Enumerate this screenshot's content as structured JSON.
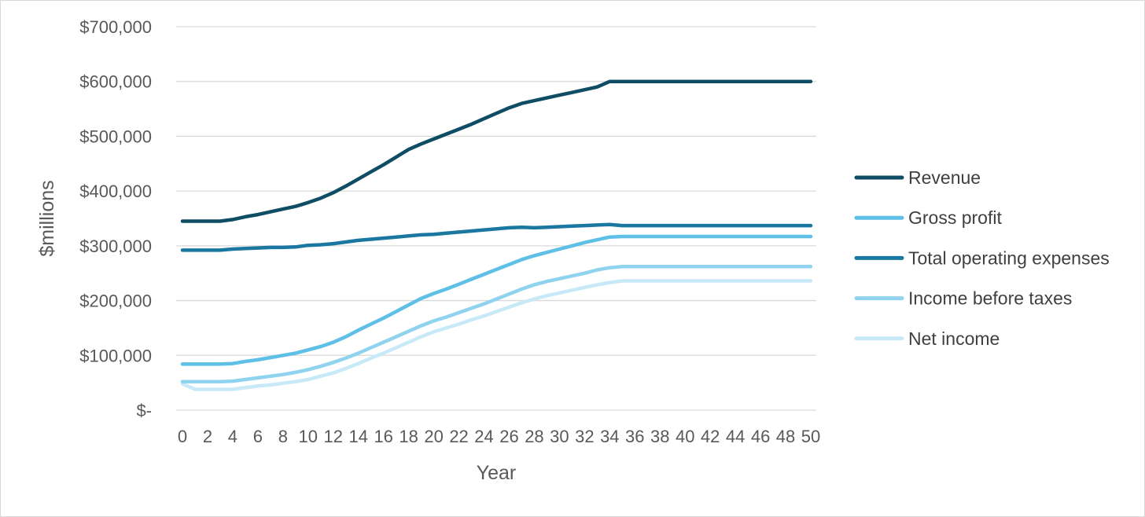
{
  "chart_data": {
    "type": "line",
    "title": "",
    "xlabel": "Year",
    "ylabel": "$millions",
    "ylim": [
      0,
      700000
    ],
    "xlim": [
      0,
      50
    ],
    "grid": true,
    "legend_position": "right",
    "y_ticks": [
      {
        "value": 0,
        "label": "$-"
      },
      {
        "value": 100000,
        "label": "$100,000"
      },
      {
        "value": 200000,
        "label": "$200,000"
      },
      {
        "value": 300000,
        "label": "$300,000"
      },
      {
        "value": 400000,
        "label": "$400,000"
      },
      {
        "value": 500000,
        "label": "$500,000"
      },
      {
        "value": 600000,
        "label": "$600,000"
      },
      {
        "value": 700000,
        "label": "$700,000"
      }
    ],
    "x_ticks": [
      0,
      2,
      4,
      6,
      8,
      10,
      12,
      14,
      16,
      18,
      20,
      22,
      24,
      26,
      28,
      30,
      32,
      34,
      36,
      38,
      40,
      42,
      44,
      46,
      48,
      50
    ],
    "series": [
      {
        "name": "Revenue",
        "color": "#0e4d64",
        "x": [
          0,
          1,
          2,
          3,
          4,
          5,
          6,
          7,
          8,
          9,
          10,
          11,
          12,
          13,
          14,
          15,
          16,
          17,
          18,
          19,
          20,
          21,
          22,
          23,
          24,
          25,
          26,
          27,
          28,
          29,
          30,
          31,
          32,
          33,
          34,
          35,
          36,
          37,
          38,
          39,
          40,
          41,
          42,
          43,
          44,
          45,
          46,
          47,
          48,
          49,
          50
        ],
        "values": [
          345000,
          345000,
          345000,
          345000,
          348000,
          353000,
          357000,
          362000,
          367000,
          372000,
          379000,
          387000,
          397000,
          409000,
          422000,
          435000,
          448000,
          462000,
          476000,
          486000,
          495000,
          504000,
          513000,
          522000,
          532000,
          542000,
          552000,
          560000,
          565000,
          570000,
          575000,
          580000,
          585000,
          590000,
          600000,
          600000,
          600000,
          600000,
          600000,
          600000,
          600000,
          600000,
          600000,
          600000,
          600000,
          600000,
          600000,
          600000,
          600000,
          600000,
          600000
        ]
      },
      {
        "name": "Gross profit",
        "color": "#5ec0e6",
        "x": [
          0,
          1,
          2,
          3,
          4,
          5,
          6,
          7,
          8,
          9,
          10,
          11,
          12,
          13,
          14,
          15,
          16,
          17,
          18,
          19,
          20,
          21,
          22,
          23,
          24,
          25,
          26,
          27,
          28,
          29,
          30,
          31,
          32,
          33,
          34,
          35,
          36,
          37,
          38,
          39,
          40,
          41,
          42,
          43,
          44,
          45,
          46,
          47,
          48,
          49,
          50
        ],
        "values": [
          84000,
          84000,
          84000,
          84000,
          85000,
          89000,
          92000,
          96000,
          100000,
          104000,
          110000,
          116000,
          124000,
          134000,
          146000,
          157000,
          168000,
          180000,
          192000,
          204000,
          213000,
          221000,
          230000,
          239000,
          248000,
          257000,
          266000,
          275000,
          282000,
          288000,
          294000,
          300000,
          306000,
          311000,
          316000,
          317000,
          317000,
          317000,
          317000,
          317000,
          317000,
          317000,
          317000,
          317000,
          317000,
          317000,
          317000,
          317000,
          317000,
          317000,
          317000
        ]
      },
      {
        "name": "Total operating expenses",
        "color": "#1a78a0",
        "x": [
          0,
          1,
          2,
          3,
          4,
          5,
          6,
          7,
          8,
          9,
          10,
          11,
          12,
          13,
          14,
          15,
          16,
          17,
          18,
          19,
          20,
          21,
          22,
          23,
          24,
          25,
          26,
          27,
          28,
          29,
          30,
          31,
          32,
          33,
          34,
          35,
          36,
          37,
          38,
          39,
          40,
          41,
          42,
          43,
          44,
          45,
          46,
          47,
          48,
          49,
          50
        ],
        "values": [
          292000,
          292000,
          292000,
          292000,
          294000,
          295000,
          296000,
          297000,
          297000,
          298000,
          301000,
          302000,
          304000,
          307000,
          310000,
          312000,
          314000,
          316000,
          318000,
          320000,
          321000,
          323000,
          325000,
          327000,
          329000,
          331000,
          333000,
          334000,
          333000,
          334000,
          335000,
          336000,
          337000,
          338000,
          339000,
          337000,
          337000,
          337000,
          337000,
          337000,
          337000,
          337000,
          337000,
          337000,
          337000,
          337000,
          337000,
          337000,
          337000,
          337000,
          337000
        ]
      },
      {
        "name": "Income before taxes",
        "color": "#8fd3ef",
        "x": [
          0,
          1,
          2,
          3,
          4,
          5,
          6,
          7,
          8,
          9,
          10,
          11,
          12,
          13,
          14,
          15,
          16,
          17,
          18,
          19,
          20,
          21,
          22,
          23,
          24,
          25,
          26,
          27,
          28,
          29,
          30,
          31,
          32,
          33,
          34,
          35,
          36,
          37,
          38,
          39,
          40,
          41,
          42,
          43,
          44,
          45,
          46,
          47,
          48,
          49,
          50
        ],
        "values": [
          52000,
          52000,
          52000,
          52000,
          53000,
          56000,
          59000,
          62000,
          65000,
          69000,
          74000,
          80000,
          87000,
          95000,
          104000,
          114000,
          124000,
          134000,
          144000,
          154000,
          163000,
          170000,
          178000,
          186000,
          194000,
          203000,
          212000,
          221000,
          229000,
          235000,
          240000,
          245000,
          250000,
          256000,
          260000,
          262000,
          262000,
          262000,
          262000,
          262000,
          262000,
          262000,
          262000,
          262000,
          262000,
          262000,
          262000,
          262000,
          262000,
          262000,
          262000
        ]
      },
      {
        "name": "Net income",
        "color": "#c8eaf8",
        "x": [
          0,
          1,
          2,
          3,
          4,
          5,
          6,
          7,
          8,
          9,
          10,
          11,
          12,
          13,
          14,
          15,
          16,
          17,
          18,
          19,
          20,
          21,
          22,
          23,
          24,
          25,
          26,
          27,
          28,
          29,
          30,
          31,
          32,
          33,
          34,
          35,
          36,
          37,
          38,
          39,
          40,
          41,
          42,
          43,
          44,
          45,
          46,
          47,
          48,
          49,
          50
        ],
        "values": [
          48000,
          38000,
          38000,
          38000,
          38000,
          41000,
          44000,
          46000,
          49000,
          52000,
          56000,
          62000,
          68000,
          76000,
          85000,
          95000,
          104000,
          114000,
          124000,
          134000,
          143000,
          150000,
          157000,
          165000,
          172000,
          180000,
          188000,
          196000,
          203000,
          209000,
          214000,
          219000,
          224000,
          229000,
          233000,
          236000,
          236000,
          236000,
          236000,
          236000,
          236000,
          236000,
          236000,
          236000,
          236000,
          236000,
          236000,
          236000,
          236000,
          236000,
          236000
        ]
      }
    ]
  }
}
